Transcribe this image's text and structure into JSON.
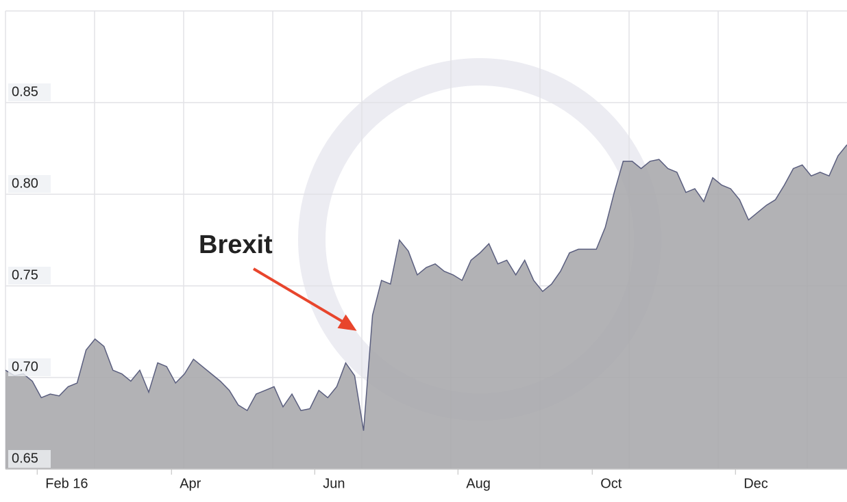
{
  "chart_data": {
    "type": "area",
    "categories": [
      null,
      null,
      null,
      null,
      "Feb 16",
      null,
      null,
      null,
      null,
      null,
      null,
      null,
      null,
      null,
      null,
      null,
      null,
      null,
      null,
      "Apr",
      null,
      null,
      null,
      null,
      null,
      null,
      null,
      null,
      null,
      null,
      null,
      null,
      null,
      null,
      null,
      "Jun",
      null,
      null,
      null,
      null,
      null,
      null,
      null,
      null,
      null,
      null,
      null,
      null,
      null,
      null,
      null,
      "Aug",
      null,
      null,
      null,
      null,
      null,
      null,
      null,
      null,
      null,
      null,
      null,
      null,
      null,
      null,
      "Oct",
      null,
      null,
      null,
      null,
      null,
      null,
      null,
      null,
      null,
      null,
      null,
      null,
      null,
      null,
      null,
      "Dec",
      null,
      null,
      null,
      null,
      null,
      null,
      null,
      null,
      null,
      null,
      null,
      null
    ],
    "values": [
      0.704,
      0.701,
      0.702,
      0.698,
      0.689,
      0.691,
      0.69,
      0.695,
      0.697,
      0.715,
      0.721,
      0.717,
      0.704,
      0.702,
      0.698,
      0.704,
      0.692,
      0.708,
      0.706,
      0.697,
      0.702,
      0.71,
      0.706,
      0.702,
      0.698,
      0.693,
      0.685,
      0.682,
      0.691,
      0.693,
      0.695,
      0.684,
      0.691,
      0.682,
      0.683,
      0.693,
      0.689,
      0.695,
      0.708,
      0.701,
      0.671,
      0.734,
      0.753,
      0.751,
      0.775,
      0.769,
      0.756,
      0.76,
      0.762,
      0.758,
      0.756,
      0.753,
      0.764,
      0.768,
      0.773,
      0.762,
      0.764,
      0.756,
      0.764,
      0.753,
      0.747,
      0.751,
      0.758,
      0.768,
      0.77,
      0.77,
      0.77,
      0.782,
      0.801,
      0.818,
      0.818,
      0.814,
      0.818,
      0.819,
      0.814,
      0.812,
      0.801,
      0.803,
      0.796,
      0.809,
      0.805,
      0.803,
      0.797,
      0.786,
      0.79,
      0.794,
      0.797,
      0.805,
      0.814,
      0.816,
      0.81,
      0.812,
      0.81,
      0.821,
      0.827
    ],
    "color": "#a7a7ab",
    "line_color": "#5a5e7e",
    "ylim": [
      0.65,
      0.9
    ],
    "yticks": [
      0.65,
      {
        "value": 0.7,
        "label": "0.70"
      },
      0.75,
      {
        "value": 0.8,
        "label": "0.80"
      },
      0.85
    ],
    "grid": true,
    "annotation": {
      "text": "Brexit",
      "index": 40,
      "color": "#e8452c"
    }
  }
}
